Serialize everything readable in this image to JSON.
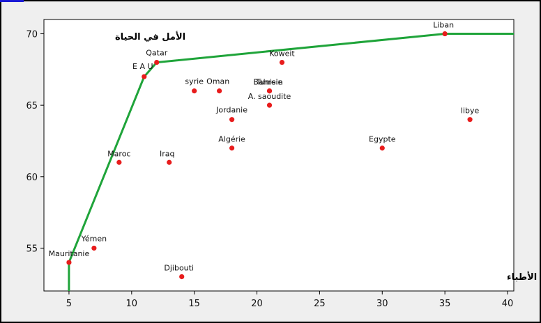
{
  "chart_data": {
    "type": "scatter",
    "ylabel": "الأمل في الحياة",
    "xlabel": "عدد الأطباء",
    "xlim": [
      3,
      40.5
    ],
    "ylim": [
      52,
      71
    ],
    "xticks": [
      5,
      10,
      15,
      20,
      25,
      30,
      35,
      40
    ],
    "yticks": [
      55,
      60,
      65,
      70
    ],
    "grid": false,
    "colors": {
      "points": "#e81c1c",
      "frontier": "#1fa43a",
      "plot_bg": "#ffffff",
      "frame_bg": "#efefef"
    },
    "points": [
      {
        "label": "Mauritanie",
        "x": 5,
        "y": 54
      },
      {
        "label": "Yémen",
        "x": 7,
        "y": 55
      },
      {
        "label": "Maroc",
        "x": 9,
        "y": 61
      },
      {
        "label": "E A U",
        "x": 11,
        "y": 67
      },
      {
        "label": "Qatar",
        "x": 12,
        "y": 68
      },
      {
        "label": "Iraq",
        "x": 13,
        "y": 61
      },
      {
        "label": "Djibouti",
        "x": 14,
        "y": 53
      },
      {
        "label": "syrie",
        "x": 15,
        "y": 66
      },
      {
        "label": "Oman",
        "x": 17,
        "y": 66
      },
      {
        "label": "Jordanie",
        "x": 18,
        "y": 64
      },
      {
        "label": "Algérie",
        "x": 18,
        "y": 62
      },
      {
        "label": "Tunisie",
        "x": 21,
        "y": 66
      },
      {
        "label": "Bahrein",
        "x": 21,
        "y": 66
      },
      {
        "label": "A. saoudite",
        "x": 21,
        "y": 65
      },
      {
        "label": "Koweit",
        "x": 22,
        "y": 68
      },
      {
        "label": "Egypte",
        "x": 30,
        "y": 62
      },
      {
        "label": "Liban",
        "x": 35,
        "y": 70
      },
      {
        "label": "libye",
        "x": 37,
        "y": 64
      }
    ],
    "frontier": {
      "x": [
        5,
        5,
        11,
        12,
        35,
        40.5
      ],
      "y": [
        52,
        54,
        67,
        68,
        70,
        70
      ]
    }
  }
}
